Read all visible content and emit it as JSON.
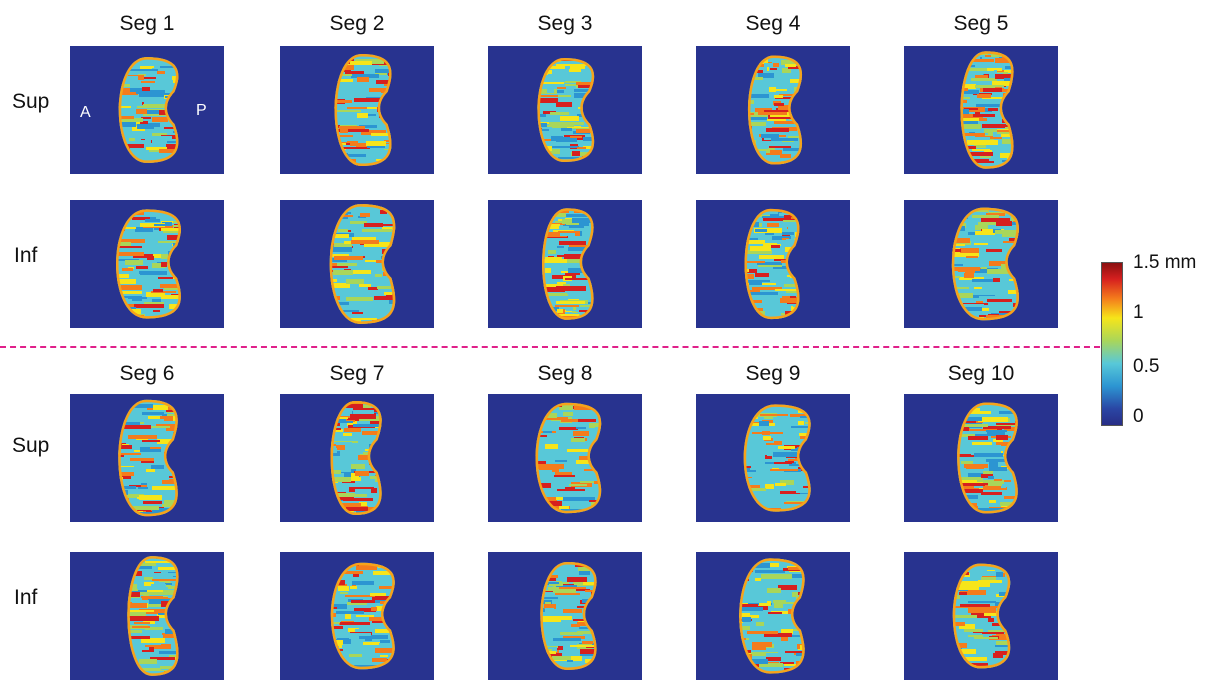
{
  "segments_top": [
    "Seg 1",
    "Seg 2",
    "Seg 3",
    "Seg 4",
    "Seg 5"
  ],
  "segments_bottom": [
    "Seg 6",
    "Seg 7",
    "Seg 8",
    "Seg 9",
    "Seg 10"
  ],
  "row_labels": {
    "sup": "Sup",
    "inf": "Inf"
  },
  "orientation": {
    "anterior": "A",
    "posterior": "P"
  },
  "colorbar": {
    "labels": [
      "1.5 mm",
      "1",
      "0.5",
      "0"
    ],
    "range_mm": [
      0,
      1.5
    ],
    "colors": [
      "#282d86",
      "#2a46a4",
      "#2c95d2",
      "#58c8d8",
      "#a9d65a",
      "#f6e51a",
      "#f47c1c",
      "#d6201f",
      "#8a0f10"
    ]
  },
  "colors": {
    "background_field": "#28338f",
    "divider": "#e0208a"
  }
}
